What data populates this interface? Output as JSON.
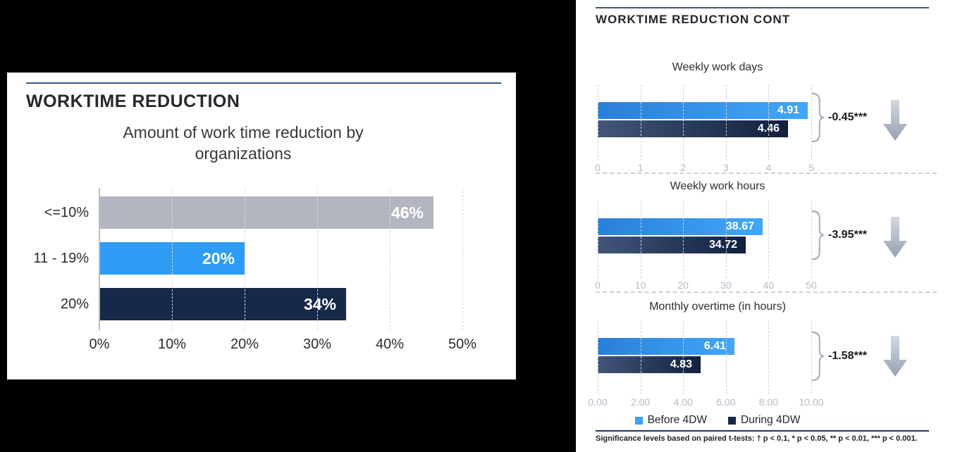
{
  "left_panel": {
    "header": "WORKTIME REDUCTION"
  },
  "right_panel": {
    "header": "WORKTIME REDUCTION CONT",
    "legend": [
      {
        "label": "Before 4DW",
        "color": "#3da0f2"
      },
      {
        "label": "During 4DW",
        "color": "#16294b"
      }
    ],
    "footnote": "Significance levels based on paired t-tests: † p < 0.1, * p < 0.05, ** p < 0.01, *** p < 0.001."
  },
  "chart_data": [
    {
      "type": "bar",
      "orientation": "horizontal",
      "title": "Amount of work time reduction by organizations",
      "categories": [
        "<=10%",
        "11 - 19%",
        "20%"
      ],
      "values": [
        46,
        20,
        34
      ],
      "value_labels": [
        "46%",
        "20%",
        "34%"
      ],
      "bar_colors": [
        "#b3b6bf",
        "#2e9cf4",
        "#16294b"
      ],
      "xlim": [
        0,
        50
      ],
      "xticks": [
        "0%",
        "10%",
        "20%",
        "30%",
        "40%",
        "50%"
      ],
      "solid_axis": true,
      "grid": "vertical-dashed"
    },
    {
      "type": "bar",
      "orientation": "horizontal",
      "title": "Weekly work days",
      "series": [
        {
          "name": "Before 4DW",
          "value": 4.91,
          "label": "4.91"
        },
        {
          "name": "During 4DW",
          "value": 4.46,
          "label": "4.46"
        }
      ],
      "difference": "-0.45***",
      "xlim": [
        0,
        5
      ],
      "xticks": [
        "0",
        "1",
        "2",
        "3",
        "4",
        "5"
      ],
      "grid": "vertical-dashed"
    },
    {
      "type": "bar",
      "orientation": "horizontal",
      "title": "Weekly work hours",
      "series": [
        {
          "name": "Before 4DW",
          "value": 38.67,
          "label": "38.67"
        },
        {
          "name": "During 4DW",
          "value": 34.72,
          "label": "34.72"
        }
      ],
      "difference": "-3.95***",
      "xlim": [
        0,
        50
      ],
      "xticks": [
        "0",
        "10",
        "20",
        "30",
        "40",
        "50"
      ],
      "grid": "vertical-dashed"
    },
    {
      "type": "bar",
      "orientation": "horizontal",
      "title": "Monthly overtime (in hours)",
      "series": [
        {
          "name": "Before 4DW",
          "value": 6.41,
          "label": "6.41"
        },
        {
          "name": "During 4DW",
          "value": 4.83,
          "label": "4.83"
        }
      ],
      "difference": "-1.58***",
      "xlim": [
        0,
        10
      ],
      "xticks": [
        "0.00",
        "2.00",
        "4.00",
        "6.00",
        "8.00",
        "10.00"
      ],
      "grid": "vertical-dashed"
    }
  ],
  "colors": {
    "accent_line": "#3d5a77",
    "footnote_line": "#20335c",
    "bar_blue_gradient": [
      "#2a7fd8",
      "#41a7fa"
    ],
    "bar_navy_gradient": [
      "#42567a",
      "#10203e"
    ],
    "arrow_gradient": [
      "#d3d8e1",
      "#97a1b3"
    ],
    "background": "#000000"
  }
}
